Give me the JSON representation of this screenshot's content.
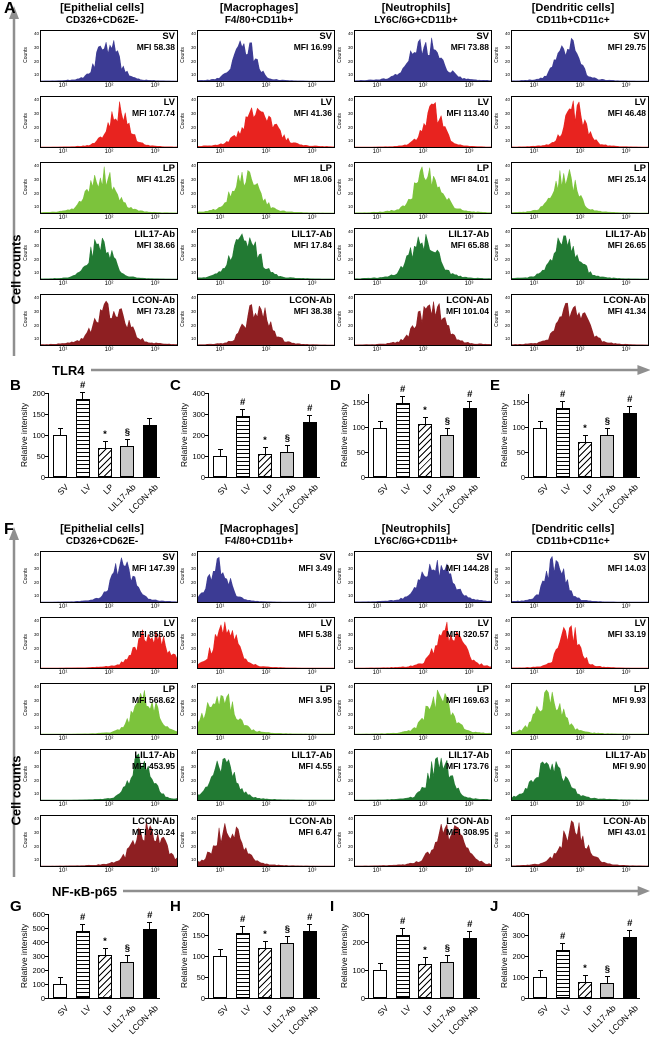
{
  "labels": {
    "cell_counts_axis": "Cell counts",
    "counts_axis": "Counts",
    "mfi_prefix": "MFI",
    "relative_intensity": "Relative intensity"
  },
  "groups": [
    "SV",
    "LV",
    "LP",
    "LIL17-Ab",
    "LCON-Ab"
  ],
  "group_colors": [
    "#3c3b94",
    "#e8231f",
    "#7cc33c",
    "#227a33",
    "#8e1f22"
  ],
  "bar_fill_styles": [
    "open",
    "hstripe",
    "dstripe",
    "gray",
    "solid"
  ],
  "chart_data": [
    {
      "id": "A",
      "panel": "A",
      "type": "flow_histogram_grid",
      "xlabel": "TLR4",
      "ylabel": "Cell counts",
      "x_tick_labels": [
        "10¹",
        "10²",
        "10³"
      ],
      "y_tick_labels": [
        "40",
        "30",
        "20",
        "10"
      ],
      "rows": [
        "SV",
        "LV",
        "LP",
        "LIL17-Ab",
        "LCON-Ab"
      ],
      "columns": [
        {
          "cell_type": "[Epithelial cells]",
          "marker": "CD326+CD62E-",
          "mfi": [
            "58.38",
            "107.74",
            "41.25",
            "38.66",
            "73.28"
          ]
        },
        {
          "cell_type": "[Macrophages]",
          "marker": "F4/80+CD11b+",
          "mfi": [
            "16.99",
            "41.36",
            "18.06",
            "17.84",
            "38.38"
          ]
        },
        {
          "cell_type": "[Neutrophils]",
          "marker": "LY6C/6G+CD11b+",
          "mfi": [
            "73.88",
            "113.40",
            "84.01",
            "65.88",
            "101.04"
          ]
        },
        {
          "cell_type": "[Dendritic cells]",
          "marker": "CD11b+CD11c+",
          "mfi": [
            "29.75",
            "46.48",
            "25.14",
            "26.65",
            "41.34"
          ]
        }
      ]
    },
    {
      "id": "B",
      "panel": "B",
      "type": "bar",
      "ylabel": "Relative intensity",
      "categories": [
        "SV",
        "LV",
        "LP",
        "LIL17-Ab",
        "LCON-Ab"
      ],
      "values": [
        100,
        185,
        70,
        75,
        125
      ],
      "yticks": [
        0,
        50,
        100,
        150,
        200
      ],
      "ylim": 200,
      "annotations": [
        "",
        "#",
        "*",
        "§",
        ""
      ]
    },
    {
      "id": "C",
      "panel": "C",
      "type": "bar",
      "ylabel": "Relative intensity",
      "categories": [
        "SV",
        "LV",
        "LP",
        "LIL17-Ab",
        "LCON-Ab"
      ],
      "values": [
        100,
        290,
        110,
        120,
        260
      ],
      "yticks": [
        0,
        100,
        200,
        300,
        400
      ],
      "ylim": 400,
      "annotations": [
        "",
        "#",
        "*",
        "§",
        "#"
      ]
    },
    {
      "id": "D",
      "panel": "D",
      "type": "bar",
      "ylabel": "Relative intensity",
      "categories": [
        "SV",
        "LV",
        "LP",
        "LIL17-Ab",
        "LCON-Ab"
      ],
      "values": [
        100,
        150,
        108,
        85,
        140
      ],
      "yticks": [
        0,
        50,
        100,
        150
      ],
      "ylim": 170,
      "annotations": [
        "",
        "#",
        "*",
        "§",
        "#"
      ]
    },
    {
      "id": "E",
      "panel": "E",
      "type": "bar",
      "ylabel": "Relative intensity",
      "categories": [
        "SV",
        "LV",
        "LP",
        "LIL17-Ab",
        "LCON-Ab"
      ],
      "values": [
        100,
        140,
        70,
        85,
        130
      ],
      "yticks": [
        0,
        50,
        100,
        150
      ],
      "ylim": 170,
      "annotations": [
        "",
        "#",
        "*",
        "§",
        "#"
      ]
    },
    {
      "id": "F",
      "panel": "F",
      "type": "flow_histogram_grid",
      "xlabel": "NF-κB-p65",
      "ylabel": "Cell counts",
      "x_tick_labels": [
        "10¹",
        "10²",
        "10³"
      ],
      "y_tick_labels": [
        "40",
        "30",
        "20",
        "10"
      ],
      "rows": [
        "SV",
        "LV",
        "LP",
        "LIL17-Ab",
        "LCON-Ab"
      ],
      "columns": [
        {
          "cell_type": "[Epithelial cells]",
          "marker": "CD326+CD62E-",
          "mfi": [
            "147.39",
            "855.05",
            "568.62",
            "453.95",
            "730.24"
          ]
        },
        {
          "cell_type": "[Macrophages]",
          "marker": "F4/80+CD11b+",
          "mfi": [
            "3.49",
            "5.38",
            "3.95",
            "4.55",
            "6.47"
          ]
        },
        {
          "cell_type": "[Neutrophils]",
          "marker": "LY6C/6G+CD11b+",
          "mfi": [
            "144.28",
            "320.57",
            "169.63",
            "173.76",
            "308.95"
          ]
        },
        {
          "cell_type": "[Dendritic cells]",
          "marker": "CD11b+CD11c+",
          "mfi": [
            "14.03",
            "33.19",
            "9.93",
            "9.90",
            "43.01"
          ]
        }
      ]
    },
    {
      "id": "G",
      "panel": "G",
      "type": "bar",
      "ylabel": "Relative intensity",
      "categories": [
        "SV",
        "LV",
        "LP",
        "LIL17-Ab",
        "LCON-Ab"
      ],
      "values": [
        100,
        480,
        310,
        255,
        490
      ],
      "yticks": [
        0,
        100,
        200,
        300,
        400,
        500,
        600
      ],
      "ylim": 600,
      "annotations": [
        "",
        "#",
        "*",
        "§",
        "#"
      ]
    },
    {
      "id": "H",
      "panel": "H",
      "type": "bar",
      "ylabel": "Relative intensity",
      "categories": [
        "SV",
        "LV",
        "LP",
        "LIL17-Ab",
        "LCON-Ab"
      ],
      "values": [
        100,
        155,
        120,
        130,
        160
      ],
      "yticks": [
        0,
        50,
        100,
        150,
        200
      ],
      "ylim": 200,
      "annotations": [
        "",
        "#",
        "*",
        "§",
        "#"
      ]
    },
    {
      "id": "I",
      "panel": "I",
      "type": "bar",
      "ylabel": "Relative intensity",
      "categories": [
        "SV",
        "LV",
        "LP",
        "LIL17-Ab",
        "LCON-Ab"
      ],
      "values": [
        100,
        225,
        120,
        130,
        215
      ],
      "yticks": [
        0,
        100,
        200,
        300
      ],
      "ylim": 300,
      "annotations": [
        "",
        "#",
        "*",
        "§",
        "#"
      ]
    },
    {
      "id": "J",
      "panel": "J",
      "type": "bar",
      "ylabel": "Relative intensity",
      "categories": [
        "SV",
        "LV",
        "LP",
        "LIL17-Ab",
        "LCON-Ab"
      ],
      "values": [
        100,
        230,
        75,
        70,
        290
      ],
      "yticks": [
        0,
        100,
        200,
        300,
        400
      ],
      "ylim": 400,
      "annotations": [
        "",
        "#",
        "*",
        "§",
        "#"
      ]
    }
  ]
}
